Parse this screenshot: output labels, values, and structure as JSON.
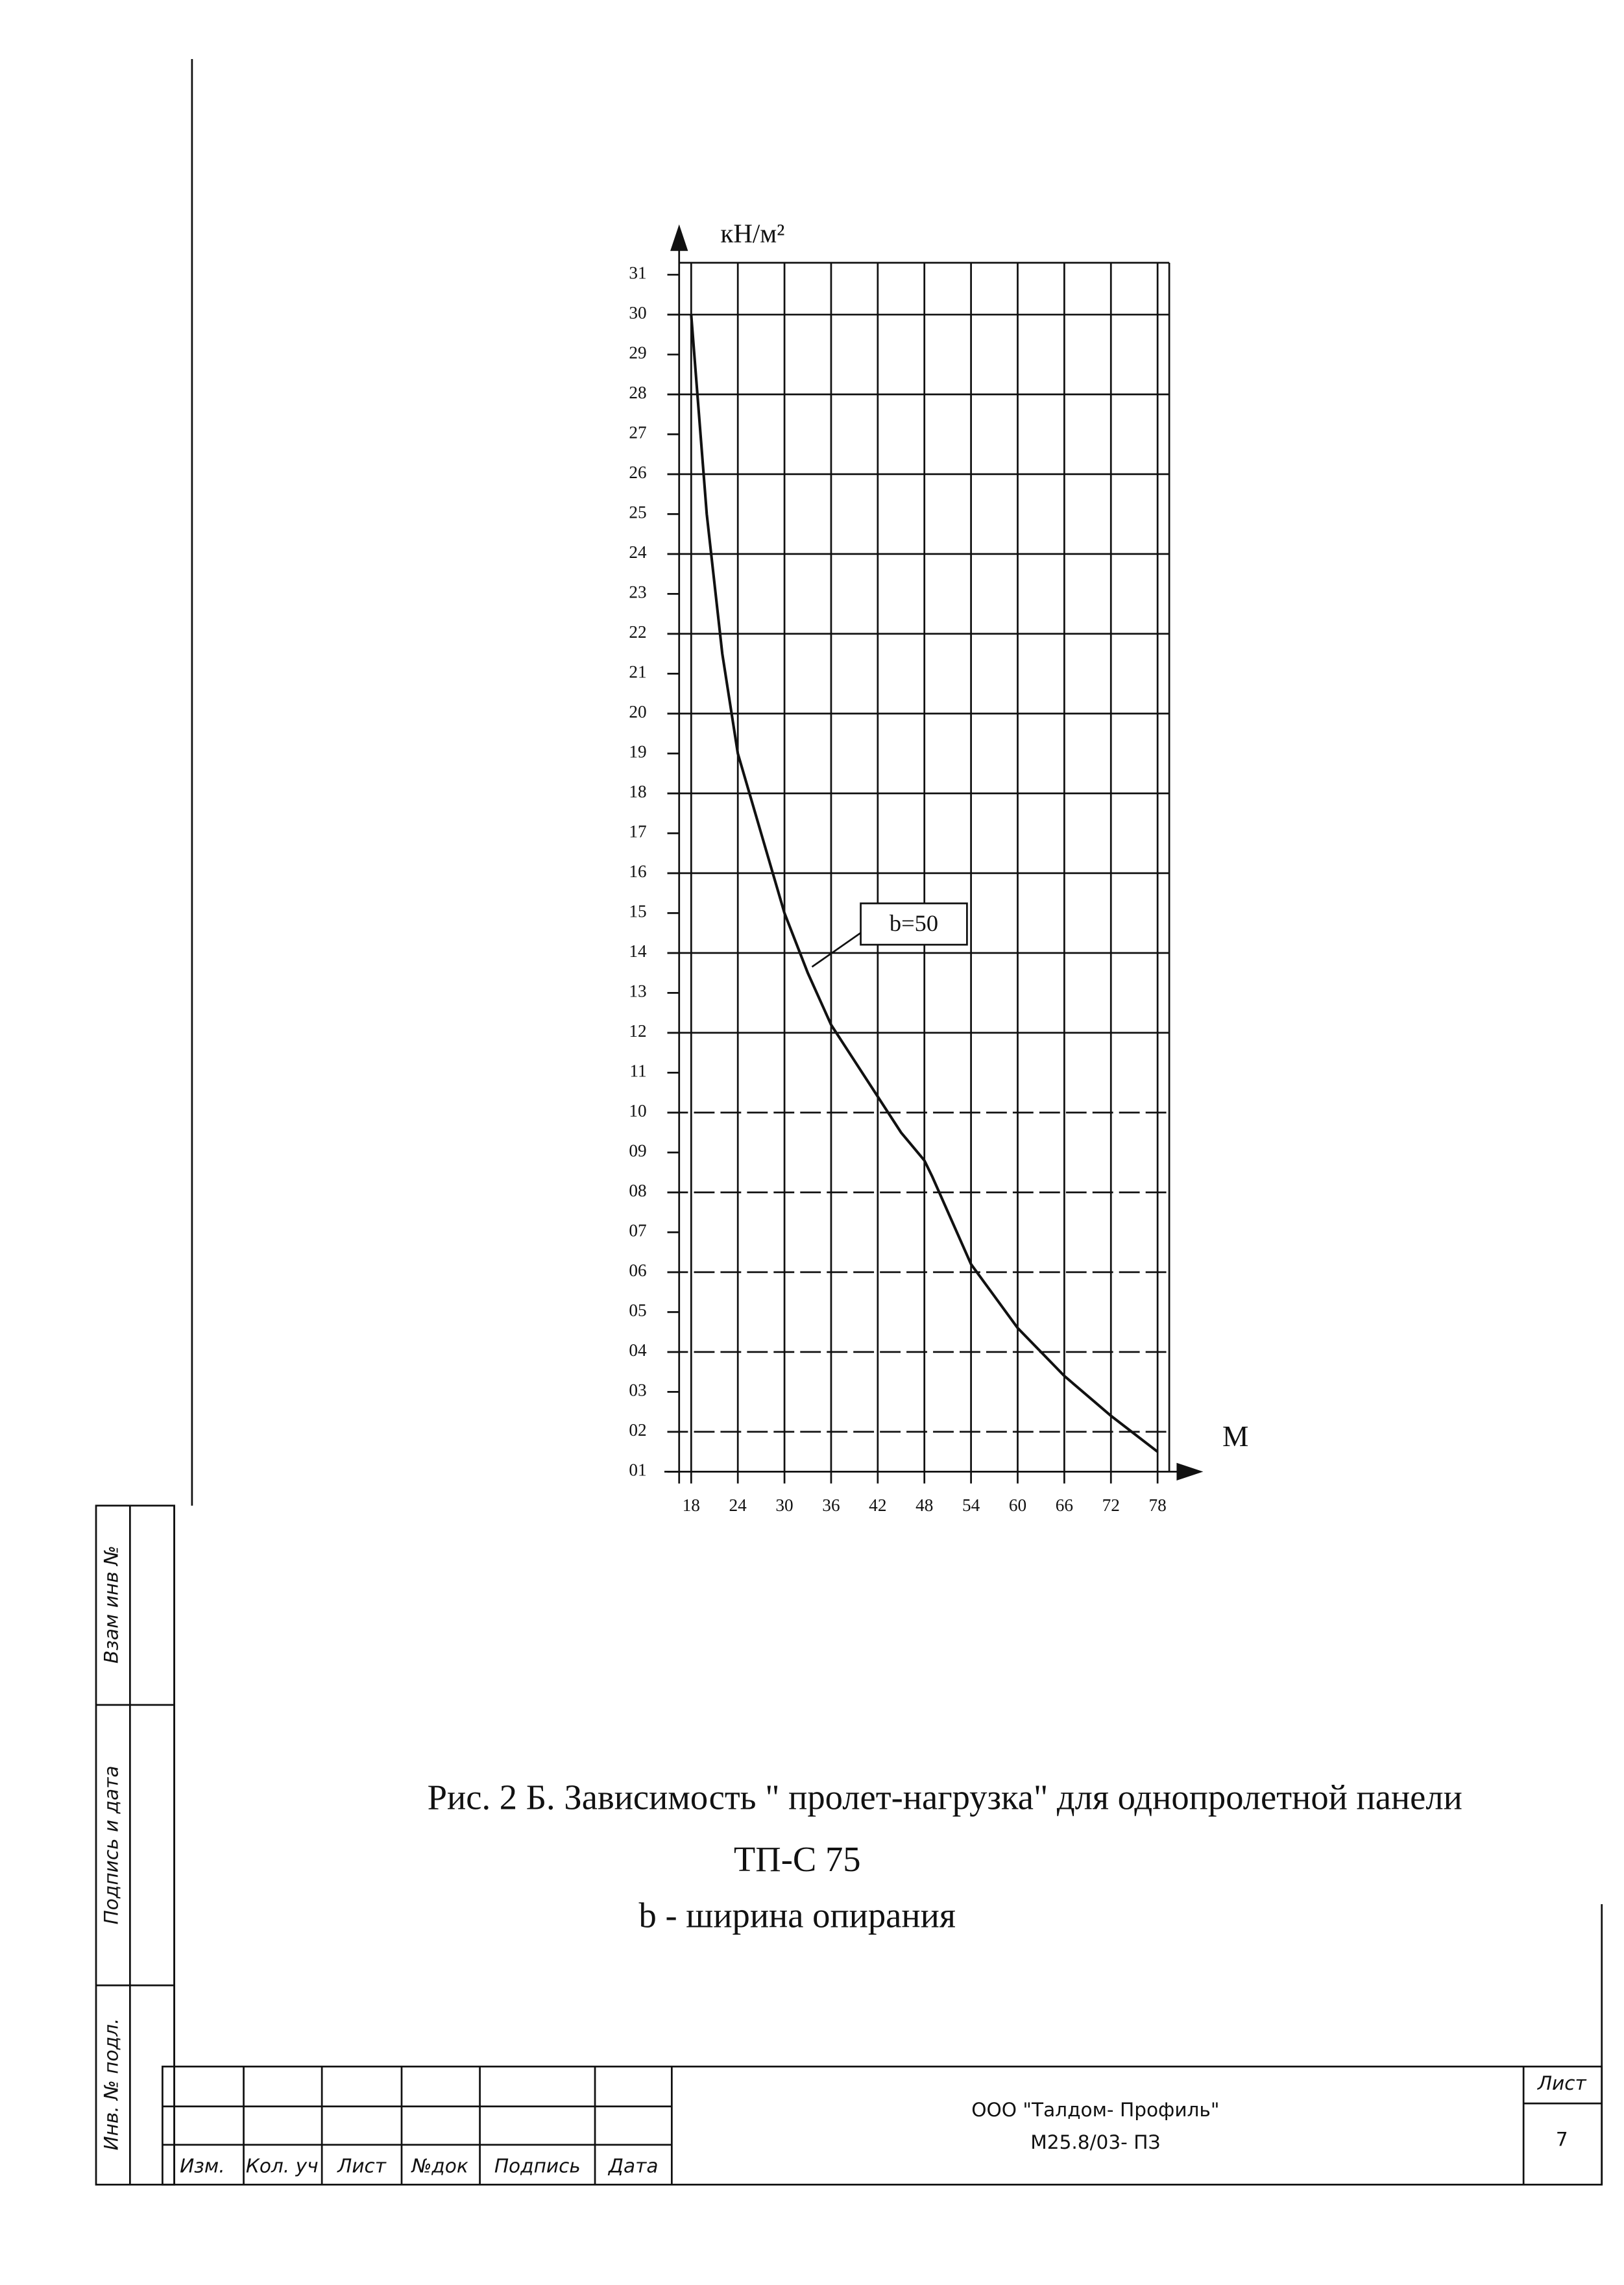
{
  "chart_data": {
    "type": "line",
    "y_label": "кН/м²",
    "x_label": "М",
    "xlim": [
      15.5,
      79.5
    ],
    "ylim": [
      1,
      31.3
    ],
    "xticks": [
      18,
      24,
      30,
      36,
      42,
      48,
      54,
      60,
      66,
      72,
      78
    ],
    "yticks": [
      {
        "value": 1,
        "label": "01"
      },
      {
        "value": 2,
        "label": "02"
      },
      {
        "value": 3,
        "label": "03"
      },
      {
        "value": 4,
        "label": "04"
      },
      {
        "value": 5,
        "label": "05"
      },
      {
        "value": 6,
        "label": "06"
      },
      {
        "value": 7,
        "label": "07"
      },
      {
        "value": 8,
        "label": "08"
      },
      {
        "value": 9,
        "label": "09"
      },
      10,
      11,
      12,
      13,
      14,
      15,
      16,
      17,
      18,
      19,
      20,
      21,
      22,
      23,
      24,
      25,
      26,
      27,
      28,
      29,
      30,
      31
    ],
    "grid": true,
    "x": [
      18,
      20,
      22,
      24,
      27,
      30,
      33,
      36,
      39,
      42,
      45,
      48,
      49,
      54,
      60,
      66,
      72,
      78
    ],
    "series": [
      {
        "name": "b=50",
        "color": "#111111",
        "values": [
          30,
          25,
          21.5,
          19,
          17,
          15,
          13.5,
          12.2,
          11.3,
          10.4,
          9.5,
          8.8,
          8.4,
          6.2,
          4.6,
          3.4,
          2.4,
          1.5
        ]
      }
    ]
  },
  "caption": {
    "line1": "Рис. 2 Б. Зависимость \" пролет-нагрузка\" для однопролетной панели",
    "line2": "ТП-С 75",
    "line3": "b - ширина опирания"
  },
  "side_stamp": [
    "Взам инв №",
    "Подпись и дата",
    "Инв. № подл."
  ],
  "title_block": {
    "columns": [
      "Изм.",
      "Кол. уч",
      "Лист",
      "№док",
      "Подпись",
      "Дата"
    ],
    "organization": "ООО \"Талдом- Профиль\"",
    "code": "М25.8/03- ПЗ",
    "sheet_label": "Лист",
    "sheet": 7
  }
}
